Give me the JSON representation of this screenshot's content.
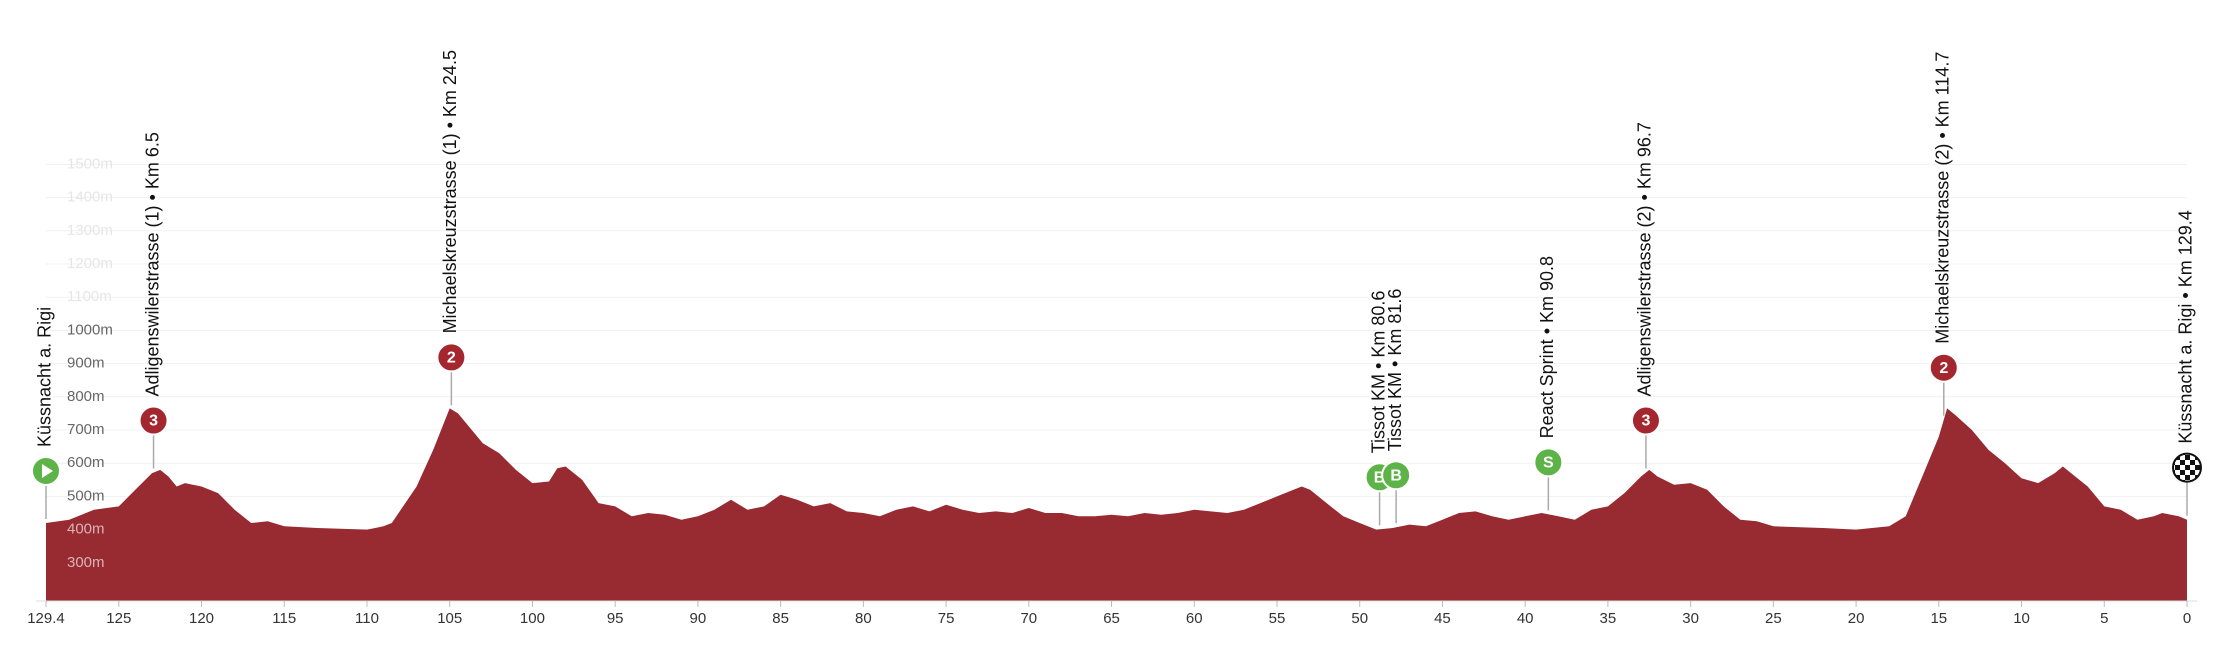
{
  "chart_data": {
    "type": "area",
    "color": "#982a31",
    "xlim": [
      129.4,
      0
    ],
    "xticks": [
      129.4,
      125,
      120,
      115,
      110,
      105,
      100,
      95,
      90,
      85,
      80,
      75,
      70,
      65,
      60,
      55,
      50,
      45,
      40,
      35,
      30,
      25,
      20,
      15,
      10,
      5,
      0
    ],
    "ylim": [
      185,
      1700
    ],
    "yticks": [
      {
        "value": 300,
        "label": "300m"
      },
      {
        "value": 400,
        "label": "400m"
      },
      {
        "value": 500,
        "label": "500m"
      },
      {
        "value": 600,
        "label": "600m"
      },
      {
        "value": 700,
        "label": "700m"
      },
      {
        "value": 800,
        "label": "800m"
      },
      {
        "value": 900,
        "label": "900m"
      },
      {
        "value": 1000,
        "label": "1000m"
      },
      {
        "value": 1100,
        "label": "1100m"
      },
      {
        "value": 1200,
        "label": "1200m"
      },
      {
        "value": 1300,
        "label": "1300m"
      },
      {
        "value": 1400,
        "label": "1400m"
      },
      {
        "value": 1500,
        "label": "1500m"
      }
    ],
    "grid": true,
    "x": [
      129.4,
      128,
      126.5,
      125,
      124,
      123,
      122.5,
      122,
      121.5,
      121,
      120,
      119,
      118,
      117,
      116,
      115,
      113,
      110,
      109,
      108.5,
      107,
      106,
      105,
      104.5,
      104,
      103,
      102,
      101,
      100,
      99,
      98.5,
      98,
      97,
      96,
      95,
      94,
      93,
      92,
      91,
      90,
      89,
      88,
      87,
      86,
      85,
      84,
      83,
      82,
      81,
      80,
      79,
      78,
      77,
      76,
      75,
      74,
      73,
      72,
      71,
      70,
      69,
      68,
      67,
      66,
      65,
      64,
      63,
      62,
      61,
      60,
      59,
      58,
      57,
      56,
      55,
      54,
      53.5,
      53,
      52,
      51,
      50,
      49,
      48,
      47,
      46,
      45,
      44,
      43,
      42,
      41,
      40,
      39,
      38,
      37,
      36,
      35,
      34,
      33,
      32.5,
      32,
      31,
      30,
      29,
      28,
      27,
      26,
      25,
      22,
      20,
      18,
      17,
      16,
      15,
      14.5,
      14,
      13,
      12,
      11,
      10,
      9,
      8,
      7.5,
      7,
      6,
      5,
      4,
      3,
      2,
      1.5,
      0.5,
      0
    ],
    "values": [
      420,
      430,
      460,
      470,
      520,
      570,
      580,
      560,
      530,
      540,
      530,
      510,
      460,
      420,
      425,
      410,
      405,
      400,
      410,
      420,
      530,
      640,
      765,
      750,
      720,
      660,
      630,
      580,
      540,
      545,
      585,
      590,
      550,
      480,
      470,
      440,
      450,
      445,
      430,
      440,
      460,
      490,
      460,
      470,
      505,
      490,
      470,
      480,
      455,
      450,
      440,
      460,
      470,
      455,
      475,
      460,
      450,
      455,
      450,
      465,
      450,
      450,
      440,
      440,
      445,
      440,
      450,
      445,
      450,
      460,
      455,
      450,
      460,
      480,
      500,
      520,
      530,
      520,
      480,
      440,
      420,
      400,
      405,
      415,
      410,
      430,
      450,
      455,
      440,
      430,
      440,
      450,
      440,
      430,
      460,
      470,
      510,
      560,
      580,
      560,
      535,
      540,
      520,
      470,
      430,
      425,
      410,
      405,
      400,
      410,
      440,
      560,
      680,
      765,
      745,
      700,
      640,
      600,
      555,
      540,
      570,
      590,
      570,
      530,
      470,
      460,
      430,
      440,
      450,
      440,
      430
    ],
    "points": [
      {
        "x": 129.4,
        "label": "Küssnacht a. Rigi",
        "marker": "start"
      },
      {
        "x": 122.9,
        "label": "Adligenswilerstrasse (1) • Km 6.5",
        "badge": "3",
        "marker": "climb"
      },
      {
        "x": 104.9,
        "label": "Michaelskreuzstrasse (1) • Km 24.5",
        "badge": "2",
        "marker": "climb"
      },
      {
        "x": 48.8,
        "label": "Tissot KM • Km 80.6",
        "badge": "B",
        "marker": "bonus"
      },
      {
        "x": 47.8,
        "label": "Tissot KM • Km 81.6",
        "badge": "B",
        "marker": "bonus"
      },
      {
        "x": 38.6,
        "label": "React Sprint • Km 90.8",
        "badge": "S",
        "marker": "bonus"
      },
      {
        "x": 32.7,
        "label": "Adligenswilerstrasse (2) • Km 96.7",
        "badge": "3",
        "marker": "climb"
      },
      {
        "x": 14.7,
        "label": "Michaelskreuzstrasse (2) • Km 114.7",
        "badge": "2",
        "marker": "climb"
      },
      {
        "x": 0,
        "label": "Küssnacht a. Rigi • Km 129.4",
        "marker": "finish"
      }
    ]
  }
}
